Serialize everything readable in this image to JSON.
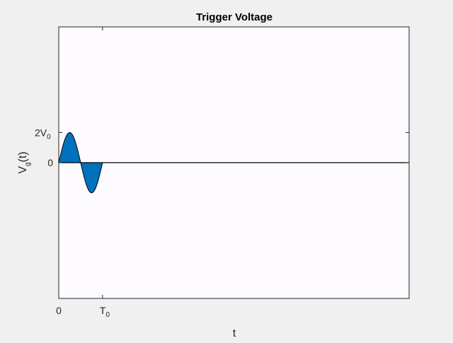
{
  "chart_data": {
    "type": "area",
    "title": "Trigger Voltage",
    "xlabel": "t",
    "ylabel": {
      "main": "V",
      "sub": "g",
      "suffix": "(t)"
    },
    "x_ticks": [
      {
        "value": 0,
        "main": "0",
        "sub": ""
      },
      {
        "value": 1,
        "main": "T",
        "sub": "0"
      }
    ],
    "y_ticks": [
      {
        "value": 0,
        "main": "0",
        "sub": ""
      },
      {
        "value": 2,
        "main": "2V",
        "sub": "0"
      }
    ],
    "xlim": [
      0,
      8
    ],
    "ylim": [
      -9,
      9
    ],
    "grid": false,
    "series": [
      {
        "waveform": "sine",
        "amplitude": 2,
        "period": 1,
        "x_range": [
          0,
          1
        ],
        "fill_color": "#0072bd"
      }
    ],
    "baseline": {
      "y": 0,
      "color": "#000000"
    }
  }
}
